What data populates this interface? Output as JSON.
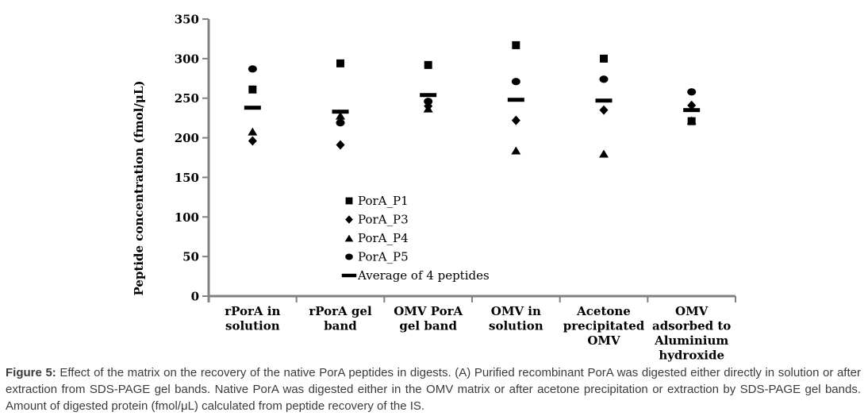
{
  "chart_data": {
    "type": "scatter",
    "title": "",
    "xlabel": "",
    "ylabel": "Peptide concentration (fmol/μL)",
    "ylim": [
      0,
      350
    ],
    "ytick_step": 50,
    "grid": false,
    "legend_position": "inside-center",
    "axis_color": "#808080",
    "marker_color": "#000000",
    "categories": [
      "rPorA in\nsolution",
      "rPorA gel\nband",
      "OMV PorA\ngel band",
      "OMV in\nsolution",
      "Acetone\nprecipitated\nOMV",
      "OMV\nadsorbed to\nAluminium\nhydroxide"
    ],
    "series": [
      {
        "name": "PorA_P1",
        "marker": "square",
        "values": [
          261,
          294,
          292,
          317,
          300,
          221
        ]
      },
      {
        "name": "PorA_P3",
        "marker": "diamond",
        "values": [
          196,
          191,
          240,
          222,
          235,
          241
        ]
      },
      {
        "name": "PorA_P4",
        "marker": "triangle",
        "values": [
          208,
          228,
          237,
          184,
          180,
          222
        ]
      },
      {
        "name": "PorA_P5",
        "marker": "circle",
        "values": [
          287,
          219,
          246,
          271,
          274,
          258
        ]
      },
      {
        "name": "Average of 4 peptides",
        "marker": "dash",
        "values": [
          238,
          233,
          254,
          248,
          247,
          235
        ]
      }
    ]
  },
  "caption": {
    "label": "Figure 5:",
    "lines": [
      " Effect of the matrix on the recovery of the native PorA peptides in digests. (A) Purified recombinant PorA was digested either directly in solution or after",
      "extraction from SDS-PAGE gel bands. Native PorA was digested either in the OMV matrix or after acetone precipitation or extraction by SDS-PAGE gel bands.",
      "Amount of digested protein (fmol/μL) calculated from peptide recovery of the IS."
    ]
  }
}
